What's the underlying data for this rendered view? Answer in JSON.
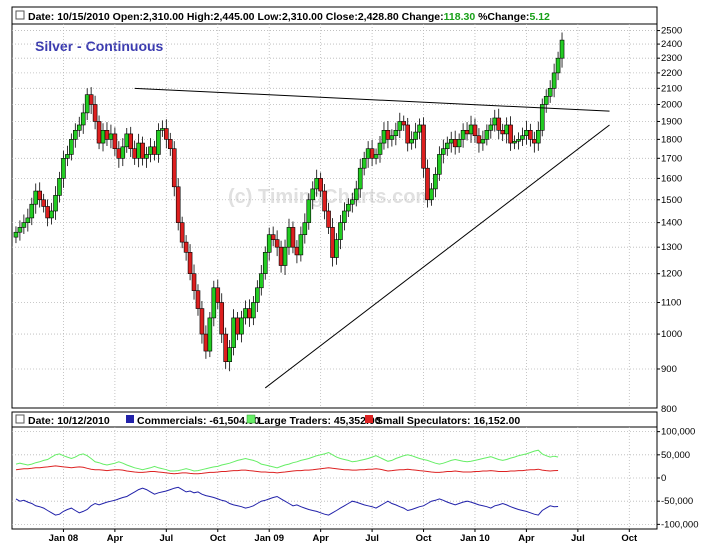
{
  "header": {
    "date_label": "Date:",
    "date": "10/15/2010",
    "open_label": "Open:",
    "open": "2,310.00",
    "high_label": "High:",
    "high": "2,445.00",
    "low_label": "Low:",
    "low": "2,310.00",
    "close_label": "Close:",
    "close": "2,428.80",
    "change_label": "Change:",
    "change": "118.30",
    "pct_label": "%Change:",
    "pct": "5.12"
  },
  "colors": {
    "up": "#22cc22",
    "down": "#dd1f1f",
    "value_green": "#18a018",
    "commercials": "#2222aa",
    "large": "#66ee66",
    "small": "#dd2222"
  },
  "chart_data": [
    {
      "type": "candlestick",
      "title": "Silver - Continuous",
      "watermark": "(c) TimingCharts.com",
      "ylim": [
        800,
        2550
      ],
      "y_ticks": [
        900,
        1000,
        1100,
        1200,
        1300,
        1400,
        1500,
        1600,
        1700,
        1800,
        1900,
        2000,
        2100,
        2200,
        2300,
        2400,
        2500
      ],
      "x_ticks": [
        "Jan 08",
        "Apr",
        "Jul",
        "Oct",
        "Jan 09",
        "Apr",
        "Jul",
        "Oct",
        "Jan 10",
        "Apr",
        "Jul",
        "Oct"
      ],
      "x_tick_week": [
        0,
        13,
        26,
        39,
        52,
        65,
        78,
        91,
        104,
        117,
        130,
        143
      ],
      "x_range_week": [
        -13,
        150
      ],
      "closes": [
        1360,
        1380,
        1400,
        1420,
        1480,
        1540,
        1500,
        1470,
        1420,
        1450,
        1520,
        1600,
        1700,
        1720,
        1800,
        1850,
        1880,
        1950,
        2060,
        2000,
        1900,
        1780,
        1850,
        1800,
        1830,
        1750,
        1700,
        1760,
        1830,
        1750,
        1700,
        1780,
        1700,
        1720,
        1760,
        1720,
        1850,
        1860,
        1800,
        1750,
        1560,
        1400,
        1320,
        1280,
        1200,
        1140,
        1080,
        1000,
        950,
        1050,
        1150,
        1100,
        1000,
        920,
        960,
        1050,
        1000,
        1050,
        1080,
        1050,
        1100,
        1150,
        1200,
        1280,
        1350,
        1330,
        1300,
        1230,
        1300,
        1380,
        1300,
        1270,
        1350,
        1400,
        1500,
        1550,
        1600,
        1540,
        1450,
        1380,
        1260,
        1330,
        1400,
        1450,
        1480,
        1500,
        1550,
        1650,
        1700,
        1750,
        1700,
        1720,
        1780,
        1850,
        1800,
        1820,
        1850,
        1900,
        1880,
        1780,
        1800,
        1840,
        1880,
        1650,
        1500,
        1550,
        1620,
        1720,
        1750,
        1780,
        1800,
        1760,
        1800,
        1850,
        1830,
        1880,
        1820,
        1780,
        1800,
        1850,
        1880,
        1920,
        1850,
        1830,
        1880,
        1780,
        1790,
        1800,
        1820,
        1850,
        1800,
        1780,
        1850,
        2000,
        2050,
        2100,
        2200,
        2300,
        2429
      ],
      "resistance_line": {
        "x": [
          18,
          138
        ],
        "y": [
          2100,
          1960
        ]
      },
      "support_line": {
        "x": [
          51,
          138
        ],
        "y": [
          850,
          1880
        ]
      }
    },
    {
      "type": "line",
      "x_range_week": [
        -13,
        150
      ],
      "ylim": [
        -110000,
        110000
      ],
      "y_ticks": [
        100000,
        50000,
        0,
        -50000,
        -100000
      ],
      "y_tick_labels": [
        "100,000",
        "50,000",
        "0",
        "-50,000",
        "-100,000"
      ],
      "legend": {
        "date_label": "Date:",
        "date": "10/12/2010",
        "commercials_label": "Commercials:",
        "commercials_value": "-61,504.00",
        "large_label": "Large Traders:",
        "large_value": "45,352.00",
        "small_label": "Small Speculators:",
        "small_value": "16,152.00"
      },
      "series": [
        {
          "name": "Commercials",
          "color": "#2222aa",
          "values": [
            -45000,
            -50000,
            -48000,
            -52000,
            -55000,
            -60000,
            -62000,
            -65000,
            -70000,
            -75000,
            -80000,
            -78000,
            -72000,
            -68000,
            -65000,
            -70000,
            -75000,
            -72000,
            -68000,
            -60000,
            -55000,
            -58000,
            -55000,
            -52000,
            -50000,
            -48000,
            -45000,
            -42000,
            -40000,
            -35000,
            -30000,
            -25000,
            -22000,
            -25000,
            -30000,
            -35000,
            -32000,
            -30000,
            -28000,
            -25000,
            -22000,
            -20000,
            -25000,
            -30000,
            -28000,
            -32000,
            -30000,
            -35000,
            -38000,
            -40000,
            -42000,
            -45000,
            -48000,
            -50000,
            -55000,
            -58000,
            -60000,
            -62000,
            -65000,
            -63000,
            -60000,
            -55000,
            -50000,
            -48000,
            -45000,
            -42000,
            -40000,
            -45000,
            -50000,
            -55000,
            -60000,
            -58000,
            -62000,
            -65000,
            -68000,
            -70000,
            -72000,
            -75000,
            -78000,
            -80000,
            -75000,
            -70000,
            -65000,
            -60000,
            -55000,
            -50000,
            -52000,
            -55000,
            -58000,
            -60000,
            -62000,
            -65000,
            -60000,
            -55000,
            -50000,
            -55000,
            -58000,
            -62000,
            -65000,
            -70000,
            -68000,
            -65000,
            -62000,
            -60000,
            -55000,
            -50000,
            -48000,
            -45000,
            -48000,
            -52000,
            -55000,
            -58000,
            -55000,
            -52000,
            -50000,
            -52000,
            -55000,
            -58000,
            -60000,
            -62000,
            -65000,
            -60000,
            -58000,
            -55000,
            -58000,
            -62000,
            -65000,
            -68000,
            -70000,
            -72000,
            -75000,
            -78000,
            -80000,
            -70000,
            -65000,
            -60000,
            -62000,
            -61504
          ]
        },
        {
          "name": "Large Traders",
          "color": "#66ee66",
          "values": [
            30000,
            32000,
            30000,
            28000,
            30000,
            33000,
            35000,
            38000,
            40000,
            45000,
            50000,
            52000,
            48000,
            45000,
            42000,
            45000,
            50000,
            52000,
            48000,
            42000,
            35000,
            33000,
            30000,
            28000,
            30000,
            32000,
            35000,
            32000,
            28000,
            25000,
            22000,
            20000,
            18000,
            20000,
            22000,
            25000,
            22000,
            20000,
            18000,
            15000,
            15000,
            16000,
            18000,
            20000,
            18000,
            15000,
            16000,
            18000,
            20000,
            22000,
            24000,
            25000,
            28000,
            30000,
            32000,
            35000,
            38000,
            40000,
            42000,
            40000,
            38000,
            35000,
            30000,
            28000,
            26000,
            24000,
            22000,
            25000,
            28000,
            30000,
            33000,
            35000,
            38000,
            40000,
            42000,
            45000,
            48000,
            50000,
            52000,
            55000,
            50000,
            45000,
            42000,
            40000,
            38000,
            35000,
            36000,
            38000,
            40000,
            42000,
            45000,
            48000,
            44000,
            40000,
            36000,
            38000,
            42000,
            45000,
            48000,
            50000,
            48000,
            45000,
            42000,
            40000,
            38000,
            35000,
            32000,
            30000,
            32000,
            35000,
            38000,
            40000,
            38000,
            36000,
            35000,
            36000,
            38000,
            40000,
            42000,
            44000,
            46000,
            43000,
            40000,
            38000,
            40000,
            43000,
            45000,
            48000,
            50000,
            52000,
            55000,
            58000,
            60000,
            52000,
            48000,
            45000,
            47000,
            45352
          ]
        },
        {
          "name": "Small Speculators",
          "color": "#dd2222",
          "values": [
            18000,
            19000,
            20000,
            20000,
            21000,
            22000,
            22000,
            23000,
            24000,
            25000,
            26000,
            25000,
            24000,
            23000,
            22000,
            23000,
            24000,
            23000,
            21000,
            19000,
            18000,
            18000,
            17000,
            16000,
            17000,
            18000,
            18000,
            17000,
            15000,
            14000,
            13000,
            12000,
            12000,
            13000,
            14000,
            14000,
            13000,
            12000,
            11000,
            10000,
            9000,
            10000,
            11000,
            11000,
            10000,
            9000,
            9000,
            10000,
            11000,
            12000,
            12000,
            13000,
            14000,
            14000,
            15000,
            16000,
            16000,
            17000,
            17000,
            16000,
            15000,
            14000,
            13000,
            13000,
            12000,
            12000,
            11000,
            12000,
            13000,
            14000,
            15000,
            16000,
            16000,
            17000,
            17000,
            18000,
            19000,
            20000,
            21000,
            22000,
            21000,
            20000,
            19000,
            18000,
            18000,
            17000,
            17000,
            18000,
            18000,
            19000,
            19000,
            20000,
            19000,
            17000,
            15000,
            16000,
            17000,
            18000,
            18000,
            19000,
            18000,
            17000,
            16000,
            15000,
            14000,
            13000,
            12000,
            12000,
            13000,
            14000,
            14000,
            15000,
            14000,
            13000,
            13000,
            13000,
            14000,
            14000,
            15000,
            15000,
            16000,
            15000,
            14000,
            14000,
            14000,
            15000,
            15000,
            16000,
            16000,
            17000,
            18000,
            18000,
            19000,
            17000,
            16000,
            15000,
            16000,
            16152
          ]
        }
      ]
    }
  ]
}
